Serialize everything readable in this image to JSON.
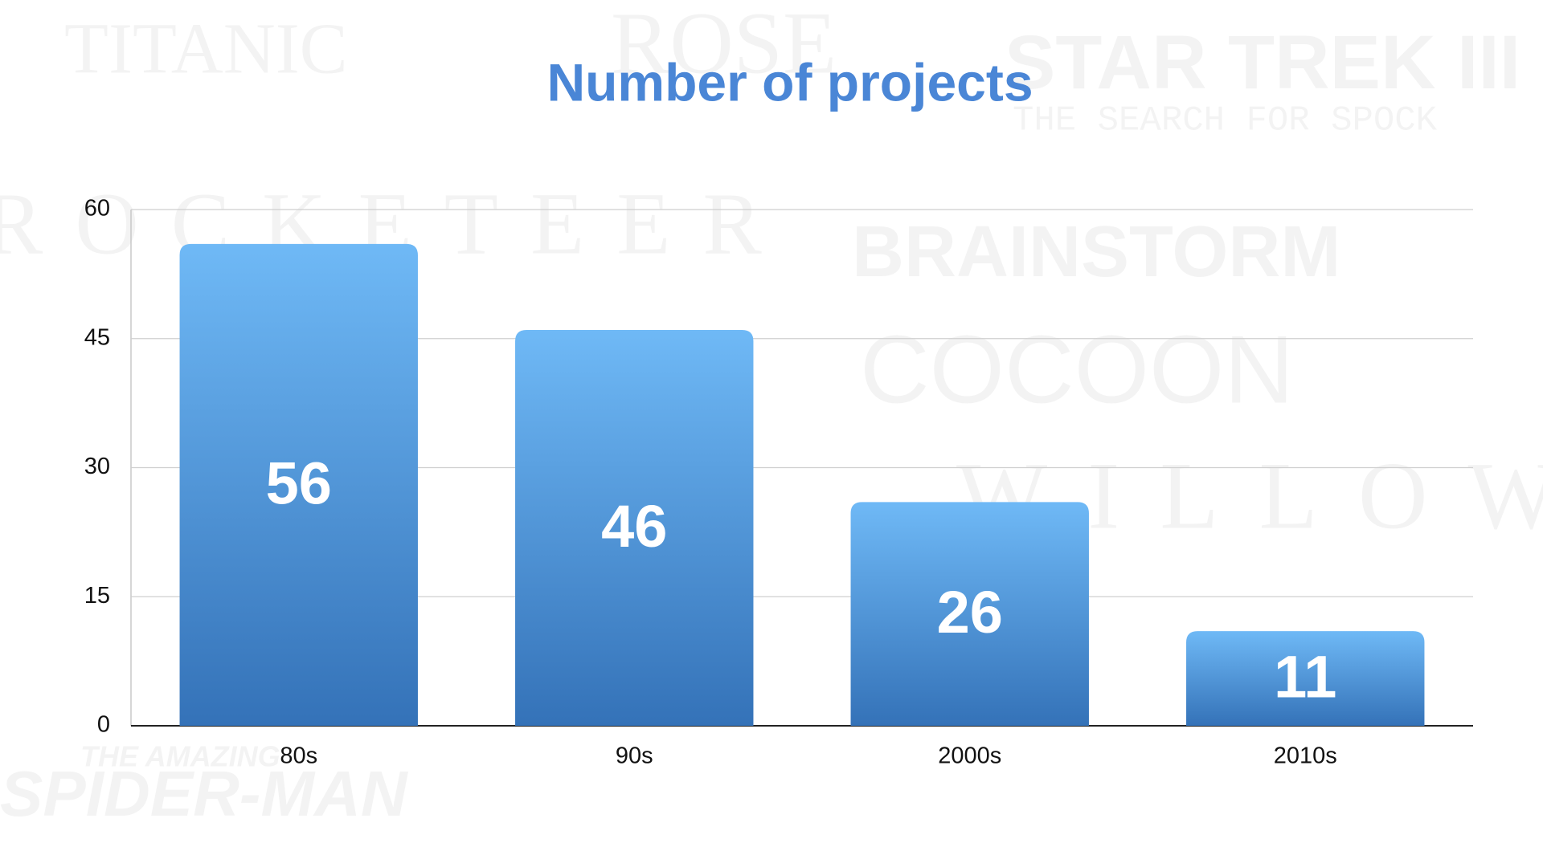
{
  "chart_data": {
    "type": "bar",
    "title": "Number of projects",
    "categories": [
      "80s",
      "90s",
      "2000s",
      "2010s"
    ],
    "values": [
      56,
      46,
      26,
      11
    ],
    "color_top": "#6fb9f6",
    "color_bottom": "#3472b8",
    "ylim": [
      0,
      60
    ],
    "yticks": [
      0,
      15,
      30,
      45,
      60
    ],
    "grid": true
  },
  "background_titles": [
    "TITANIC",
    "ROSE",
    "STAR TREK III",
    "THE SEARCH FOR SPOCK",
    "ROCKETEER",
    "BRAINSTORM",
    "COCOON",
    "WILLOW",
    "THE AMAZING",
    "SPIDER-MAN"
  ]
}
